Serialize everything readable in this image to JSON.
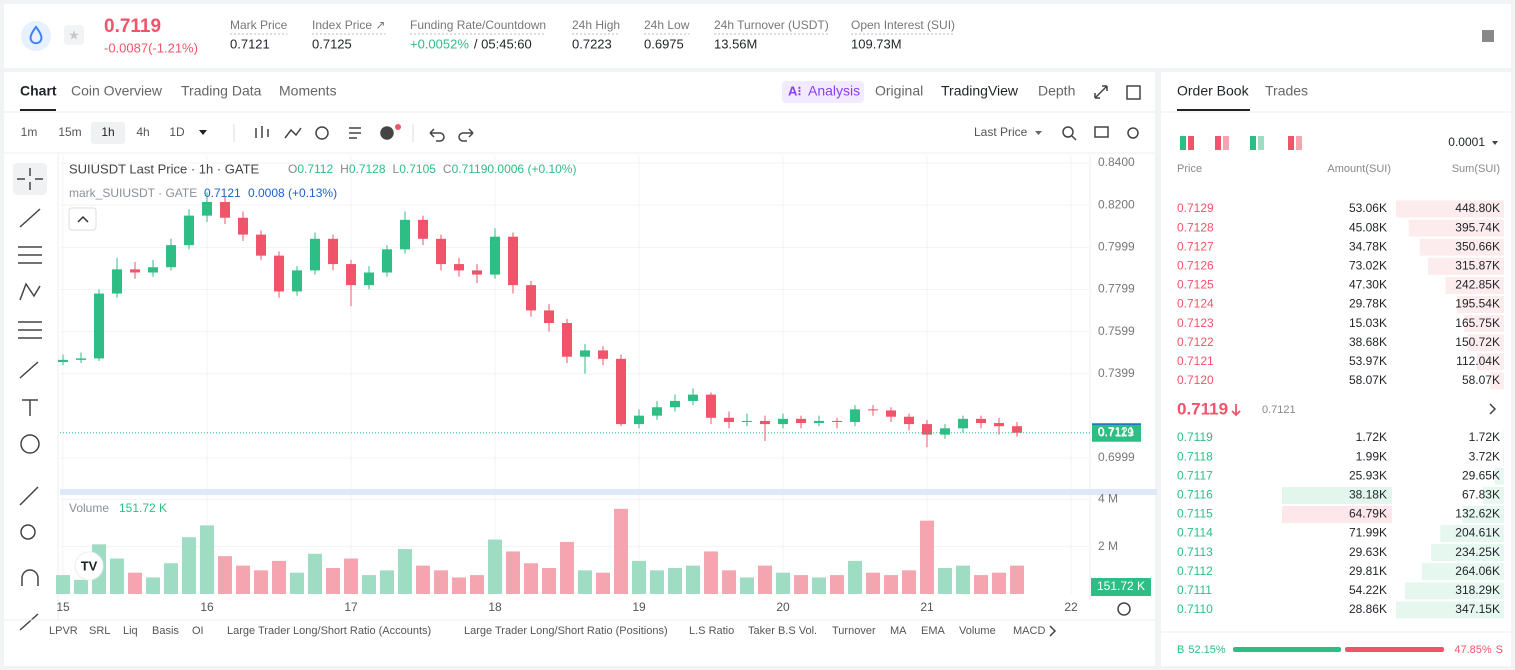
{
  "header": {
    "price": "0.7119",
    "change": "-0.0087(-1.21%)",
    "stats": [
      {
        "label": "Mark Price",
        "value": "0.7121"
      },
      {
        "label": "Index Price ↗",
        "value": "0.7125"
      },
      {
        "label": "Funding Rate/Countdown",
        "value": "+0.0052%",
        "value2": "/ 05:45:60"
      },
      {
        "label": "24h High",
        "value": "0.7223"
      },
      {
        "label": "24h Low",
        "value": "0.6975"
      },
      {
        "label": "24h Turnover (USDT)",
        "value": "13.56M"
      },
      {
        "label": "Open Interest (SUI)",
        "value": "109.73M"
      }
    ]
  },
  "tabs": [
    "Chart",
    "Coin Overview",
    "Trading Data",
    "Moments"
  ],
  "views": [
    "Analysis",
    "Original",
    "TradingView",
    "Depth"
  ],
  "intervals": [
    "1m",
    "15m",
    "1h",
    "4h",
    "1D"
  ],
  "price_type": "Last Price",
  "chart_data": {
    "type": "candlestick",
    "title": "SUIUSDT Last Price · 1h · GATE",
    "ohlc": [
      {
        "label": "O",
        "value": "0.7112"
      },
      {
        "label": "H",
        "value": "0.7128"
      },
      {
        "label": "L",
        "value": "0.7105"
      },
      {
        "label": "C",
        "value": "0.7119"
      },
      {
        "label": "",
        "value": "0.0006 (+0.10%)"
      }
    ],
    "mark_title": "mark_SUIUSDT · GATE",
    "mark_value": "0.7121",
    "mark_change": "0.0008 (+0.13%)",
    "up_color": "#2ebd85",
    "down_color": "#f0546a",
    "x": [
      15,
      15.125,
      15.25,
      15.375,
      15.5,
      15.625,
      15.75,
      15.875,
      16,
      16.125,
      16.25,
      16.375,
      16.5,
      16.625,
      16.75,
      16.875,
      17,
      17.125,
      17.25,
      17.375,
      17.5,
      17.625,
      17.75,
      17.875,
      18,
      18.125,
      18.25,
      18.375,
      18.5,
      18.625,
      18.75,
      18.875,
      19,
      19.125,
      19.25,
      19.375,
      19.5,
      19.625,
      19.75,
      19.875,
      20,
      20.125,
      20.25,
      20.375,
      20.5,
      20.625,
      20.75,
      20.875,
      21,
      21.125,
      21.25,
      21.375,
      21.5,
      21.625
    ],
    "open": [
      0.7455,
      0.7465,
      0.7472,
      0.778,
      0.7895,
      0.788,
      0.7905,
      0.801,
      0.815,
      0.8215,
      0.814,
      0.806,
      0.796,
      0.779,
      0.789,
      0.804,
      0.792,
      0.782,
      0.788,
      0.799,
      0.813,
      0.804,
      0.792,
      0.789,
      0.787,
      0.805,
      0.782,
      0.77,
      0.764,
      0.748,
      0.751,
      0.747,
      0.716,
      0.72,
      0.724,
      0.727,
      0.73,
      0.719,
      0.717,
      0.7175,
      0.716,
      0.7185,
      0.7165,
      0.7175,
      0.717,
      0.723,
      0.7225,
      0.7195,
      0.716,
      0.711,
      0.714,
      0.7185,
      0.7165,
      0.715
    ],
    "high": [
      0.749,
      0.75,
      0.78,
      0.795,
      0.793,
      0.794,
      0.804,
      0.818,
      0.826,
      0.824,
      0.817,
      0.808,
      0.798,
      0.791,
      0.807,
      0.806,
      0.794,
      0.791,
      0.801,
      0.817,
      0.815,
      0.806,
      0.795,
      0.792,
      0.809,
      0.807,
      0.784,
      0.773,
      0.766,
      0.754,
      0.753,
      0.749,
      0.723,
      0.727,
      0.73,
      0.733,
      0.731,
      0.722,
      0.721,
      0.72,
      0.721,
      0.72,
      0.72,
      0.719,
      0.725,
      0.725,
      0.724,
      0.721,
      0.718,
      0.716,
      0.72,
      0.72,
      0.719,
      0.717
    ],
    "low": [
      0.744,
      0.745,
      0.746,
      0.776,
      0.785,
      0.786,
      0.789,
      0.799,
      0.812,
      0.811,
      0.803,
      0.794,
      0.776,
      0.777,
      0.787,
      0.789,
      0.772,
      0.78,
      0.786,
      0.797,
      0.801,
      0.789,
      0.786,
      0.783,
      0.785,
      0.778,
      0.767,
      0.76,
      0.745,
      0.74,
      0.744,
      0.715,
      0.714,
      0.718,
      0.722,
      0.725,
      0.716,
      0.714,
      0.715,
      0.708,
      0.714,
      0.714,
      0.715,
      0.714,
      0.715,
      0.72,
      0.717,
      0.713,
      0.705,
      0.709,
      0.712,
      0.714,
      0.711,
      0.71
    ],
    "close": [
      0.7465,
      0.7472,
      0.778,
      0.7895,
      0.788,
      0.7905,
      0.801,
      0.815,
      0.8215,
      0.814,
      0.806,
      0.796,
      0.779,
      0.789,
      0.804,
      0.792,
      0.782,
      0.788,
      0.799,
      0.813,
      0.804,
      0.792,
      0.789,
      0.787,
      0.805,
      0.782,
      0.77,
      0.764,
      0.748,
      0.751,
      0.747,
      0.716,
      0.72,
      0.724,
      0.727,
      0.73,
      0.719,
      0.717,
      0.7175,
      0.716,
      0.7185,
      0.7165,
      0.7175,
      0.717,
      0.723,
      0.7225,
      0.7195,
      0.716,
      0.711,
      0.714,
      0.7185,
      0.7165,
      0.715,
      0.7119
    ],
    "xlim": [
      14.979,
      22.132
    ],
    "xticks": [
      15,
      16,
      17,
      18,
      19,
      20,
      21,
      22
    ],
    "ylim": [
      0.6847,
      0.8438
    ],
    "yticks": [
      {
        "value": 0.84,
        "label": "0.8400"
      },
      {
        "value": 0.82,
        "label": "0.8200"
      },
      {
        "value": 0.7999,
        "label": "0.7999"
      },
      {
        "value": 0.7799,
        "label": "0.7799"
      },
      {
        "value": 0.7599,
        "label": "0.7599"
      },
      {
        "value": 0.7399,
        "label": "0.7399"
      },
      {
        "value": 0.6999,
        "label": "0.6999"
      }
    ],
    "mark_price": 0.7121,
    "last_price": 0.7119,
    "volume": {
      "title": "Volume",
      "last": "151.72 K",
      "up_color": "#9fdcc4",
      "down_color": "#f5a5b0",
      "values": [
        0.8,
        0.6,
        2.1,
        1.5,
        0.9,
        0.7,
        1.3,
        2.4,
        2.9,
        1.6,
        1.2,
        1.0,
        1.4,
        0.9,
        1.7,
        1.1,
        1.5,
        0.8,
        1.0,
        1.9,
        1.2,
        1.0,
        0.7,
        0.8,
        2.3,
        1.8,
        1.3,
        1.1,
        2.2,
        1.0,
        0.9,
        3.6,
        1.4,
        1.0,
        1.1,
        1.2,
        1.8,
        1.0,
        0.7,
        1.2,
        0.9,
        0.8,
        0.7,
        0.8,
        1.4,
        0.9,
        0.8,
        1.0,
        3.1,
        1.1,
        1.2,
        0.8,
        0.9,
        1.2
      ],
      "ylim": [
        0,
        4.1
      ],
      "yticks": [
        {
          "value": 2,
          "label": "2 M"
        },
        {
          "value": 4,
          "label": "4 M"
        }
      ]
    }
  },
  "indicators": [
    "LPVR",
    "SRL",
    "Liq",
    "Basis",
    "OI",
    "Large Trader Long/Short Ratio (Accounts)",
    "Large Trader Long/Short Ratio (Positions)",
    "L.S Ratio",
    "Taker B.S Vol.",
    "Turnover",
    "MA",
    "EMA",
    "Volume",
    "MACD"
  ],
  "order_book": {
    "tabs": [
      "Order Book",
      "Trades"
    ],
    "precision": "0.0001",
    "columns": [
      "Price",
      "Amount(SUI)",
      "Sum(SUI)"
    ],
    "asks": [
      [
        "0.7129",
        "53.06K",
        "448.80K"
      ],
      [
        "0.7128",
        "45.08K",
        "395.74K"
      ],
      [
        "0.7127",
        "34.78K",
        "350.66K"
      ],
      [
        "0.7126",
        "73.02K",
        "315.87K"
      ],
      [
        "0.7125",
        "47.30K",
        "242.85K"
      ],
      [
        "0.7124",
        "29.78K",
        "195.54K"
      ],
      [
        "0.7123",
        "15.03K",
        "165.75K"
      ],
      [
        "0.7122",
        "38.68K",
        "150.72K"
      ],
      [
        "0.7121",
        "53.97K",
        "112.04K"
      ],
      [
        "0.7120",
        "58.07K",
        "58.07K"
      ]
    ],
    "mid": "0.7119",
    "mid_mark": "0.7121",
    "bids": [
      [
        "0.7119",
        "1.72K",
        "1.72K"
      ],
      [
        "0.7118",
        "1.99K",
        "3.72K"
      ],
      [
        "0.7117",
        "25.93K",
        "29.65K"
      ],
      [
        "0.7116",
        "38.18K",
        "67.83K"
      ],
      [
        "0.7115",
        "64.79K",
        "132.62K"
      ],
      [
        "0.7114",
        "71.99K",
        "204.61K"
      ],
      [
        "0.7113",
        "29.63K",
        "234.25K"
      ],
      [
        "0.7112",
        "29.81K",
        "264.06K"
      ],
      [
        "0.7111",
        "54.22K",
        "318.29K"
      ],
      [
        "0.7110",
        "28.86K",
        "347.15K"
      ]
    ],
    "buy": {
      "letter": "B",
      "value": 52.15,
      "label": "52.15%"
    },
    "sell": {
      "letter": "S",
      "value": 47.85,
      "label": "47.85%"
    }
  }
}
